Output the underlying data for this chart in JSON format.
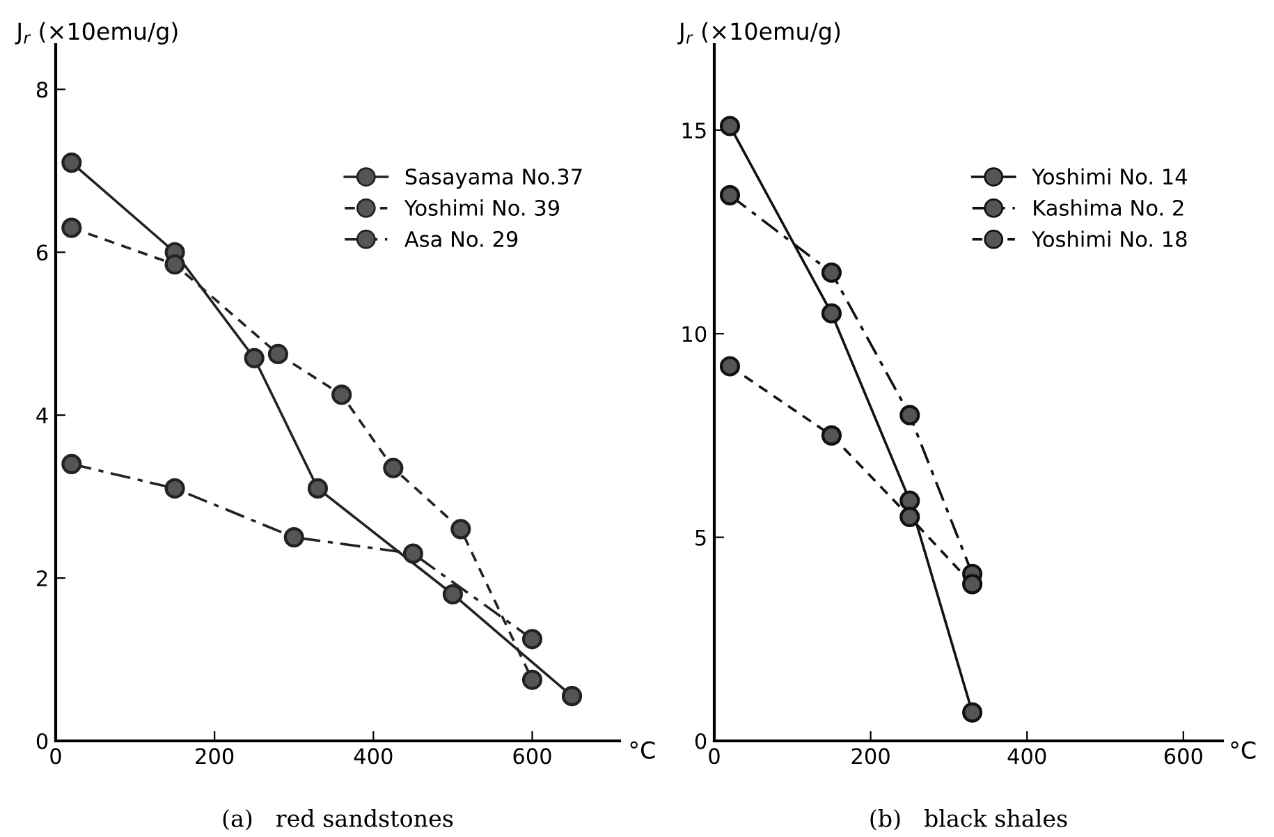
{
  "chart_data": [
    {
      "type": "line",
      "title": "(a)   red sandstones",
      "xlabel": "°C",
      "ylabel": "J$_{r}$ (×10emu/g)",
      "xlim": [
        0,
        710
      ],
      "ylim": [
        0,
        8.55
      ],
      "xticks": [
        0,
        200,
        400,
        600
      ],
      "yticks": [
        0,
        2,
        4,
        6,
        8
      ],
      "grid": false,
      "legend": "top right",
      "marker": "circle",
      "series": [
        {
          "name": "Sasayama No.37",
          "color": "#222222",
          "line_style": "solid",
          "x": [
            20,
            150,
            250,
            330,
            500,
            650
          ],
          "values": [
            7.1,
            6.0,
            4.7,
            3.1,
            1.8,
            0.55
          ]
        },
        {
          "name": "Yoshimi No. 39",
          "color": "#222222",
          "line_style": "dashed",
          "x": [
            20,
            150,
            280,
            360,
            425,
            510,
            600
          ],
          "values": [
            6.3,
            5.85,
            4.75,
            4.25,
            3.35,
            2.6,
            0.75
          ]
        },
        {
          "name": "Asa No. 29",
          "color": "#222222",
          "line_style": "dashdot",
          "x": [
            20,
            150,
            300,
            450,
            600
          ],
          "values": [
            3.4,
            3.1,
            2.5,
            2.3,
            1.25
          ]
        }
      ]
    },
    {
      "type": "line",
      "title": "(b)   black shales",
      "xlabel": "°C",
      "ylabel": "J$_{r}$ (×10emu/g)",
      "xlim": [
        0,
        650
      ],
      "ylim": [
        0,
        17.1
      ],
      "xticks": [
        0,
        200,
        400,
        600
      ],
      "yticks": [
        0,
        5,
        10,
        15
      ],
      "grid": false,
      "legend": "top right",
      "marker": "circle",
      "series": [
        {
          "name": "Yoshimi No. 14",
          "color": "#111111",
          "line_style": "solid",
          "x": [
            20,
            150,
            250,
            330
          ],
          "values": [
            15.1,
            10.5,
            5.9,
            0.7
          ]
        },
        {
          "name": "Kashima No. 2",
          "color": "#111111",
          "line_style": "dashdot",
          "x": [
            20,
            150,
            250,
            330
          ],
          "values": [
            13.4,
            11.5,
            8.0,
            4.1
          ]
        },
        {
          "name": "Yoshimi No. 18",
          "color": "#111111",
          "line_style": "dashed",
          "x": [
            20,
            150,
            250,
            330
          ],
          "values": [
            9.2,
            7.5,
            5.5,
            3.85
          ]
        }
      ]
    }
  ]
}
